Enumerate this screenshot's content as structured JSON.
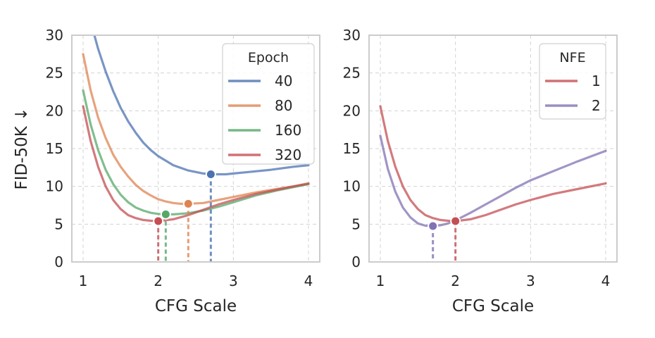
{
  "chart_data": [
    {
      "type": "line",
      "xlabel": "CFG Scale",
      "ylabel": "FID-50K ↓",
      "xlim": [
        0.85,
        4.15
      ],
      "ylim": [
        0,
        30
      ],
      "xticks": [
        1,
        2,
        3,
        4
      ],
      "yticks": [
        0,
        5,
        10,
        15,
        20,
        25,
        30
      ],
      "grid": true,
      "legend_title": "Epoch",
      "legend_position": "top-right",
      "series": [
        {
          "name": "40",
          "color": "#4c72b0",
          "x": [
            1.15,
            1.2,
            1.3,
            1.4,
            1.5,
            1.6,
            1.7,
            1.8,
            1.9,
            2.0,
            2.2,
            2.4,
            2.6,
            2.7,
            2.9,
            3.0,
            3.2,
            3.5,
            3.8,
            4.0
          ],
          "y": [
            30.0,
            28.2,
            25.2,
            22.6,
            20.4,
            18.6,
            17.1,
            15.8,
            14.8,
            14.0,
            12.8,
            12.1,
            11.7,
            11.6,
            11.6,
            11.7,
            11.9,
            12.2,
            12.6,
            12.8
          ],
          "min": {
            "x": 2.7,
            "y": 11.6
          }
        },
        {
          "name": "80",
          "color": "#dd8452",
          "x": [
            1.0,
            1.1,
            1.2,
            1.3,
            1.4,
            1.5,
            1.6,
            1.7,
            1.8,
            1.9,
            2.0,
            2.1,
            2.2,
            2.3,
            2.4,
            2.6,
            2.8,
            3.0,
            3.3,
            3.6,
            4.0
          ],
          "y": [
            27.5,
            22.7,
            19.1,
            16.4,
            14.2,
            12.6,
            11.3,
            10.2,
            9.4,
            8.8,
            8.3,
            8.0,
            7.8,
            7.7,
            7.7,
            7.8,
            8.2,
            8.6,
            9.2,
            9.7,
            10.3
          ],
          "min": {
            "x": 2.4,
            "y": 7.7
          }
        },
        {
          "name": "160",
          "color": "#55a868",
          "x": [
            1.0,
            1.1,
            1.2,
            1.3,
            1.4,
            1.5,
            1.6,
            1.7,
            1.8,
            1.9,
            2.0,
            2.1,
            2.2,
            2.4,
            2.6,
            2.8,
            3.0,
            3.3,
            3.6,
            4.0
          ],
          "y": [
            22.7,
            18.2,
            14.8,
            12.2,
            10.3,
            8.9,
            7.9,
            7.2,
            6.8,
            6.5,
            6.35,
            6.3,
            6.3,
            6.45,
            6.8,
            7.3,
            7.9,
            8.8,
            9.5,
            10.3
          ],
          "min": {
            "x": 2.1,
            "y": 6.3
          }
        },
        {
          "name": "320",
          "color": "#c44e52",
          "x": [
            1.0,
            1.1,
            1.2,
            1.3,
            1.4,
            1.5,
            1.6,
            1.7,
            1.8,
            1.9,
            2.0,
            2.2,
            2.4,
            2.6,
            2.8,
            3.0,
            3.3,
            3.6,
            4.0
          ],
          "y": [
            20.6,
            16.0,
            12.6,
            10.0,
            8.2,
            7.0,
            6.2,
            5.8,
            5.55,
            5.45,
            5.4,
            5.65,
            6.2,
            6.9,
            7.6,
            8.2,
            9.0,
            9.6,
            10.4
          ],
          "min": {
            "x": 2.0,
            "y": 5.4
          }
        }
      ]
    },
    {
      "type": "line",
      "xlabel": "CFG Scale",
      "ylabel": "",
      "xlim": [
        0.85,
        4.15
      ],
      "ylim": [
        0,
        30
      ],
      "xticks": [
        1,
        2,
        3,
        4
      ],
      "yticks": [
        0,
        5,
        10,
        15,
        20,
        25,
        30
      ],
      "grid": true,
      "legend_title": "NFE",
      "legend_position": "top-right",
      "series": [
        {
          "name": "1",
          "color": "#c44e52",
          "x": [
            1.0,
            1.1,
            1.2,
            1.3,
            1.4,
            1.5,
            1.6,
            1.7,
            1.8,
            1.9,
            2.0,
            2.2,
            2.4,
            2.6,
            2.8,
            3.0,
            3.3,
            3.6,
            4.0
          ],
          "y": [
            20.6,
            16.0,
            12.6,
            10.0,
            8.2,
            7.0,
            6.2,
            5.8,
            5.55,
            5.45,
            5.4,
            5.65,
            6.2,
            6.9,
            7.6,
            8.2,
            9.0,
            9.6,
            10.4
          ],
          "min": {
            "x": 2.0,
            "y": 5.4
          }
        },
        {
          "name": "2",
          "color": "#8172b3",
          "x": [
            1.0,
            1.1,
            1.2,
            1.3,
            1.4,
            1.5,
            1.6,
            1.7,
            1.8,
            1.9,
            2.0,
            2.2,
            2.4,
            2.6,
            2.8,
            3.0,
            3.3,
            3.6,
            4.0
          ],
          "y": [
            16.7,
            12.3,
            9.3,
            7.2,
            5.9,
            5.1,
            4.8,
            4.75,
            4.85,
            5.1,
            5.5,
            6.5,
            7.6,
            8.7,
            9.8,
            10.8,
            12.0,
            13.2,
            14.7
          ],
          "min": {
            "x": 1.7,
            "y": 4.75
          }
        }
      ]
    }
  ]
}
